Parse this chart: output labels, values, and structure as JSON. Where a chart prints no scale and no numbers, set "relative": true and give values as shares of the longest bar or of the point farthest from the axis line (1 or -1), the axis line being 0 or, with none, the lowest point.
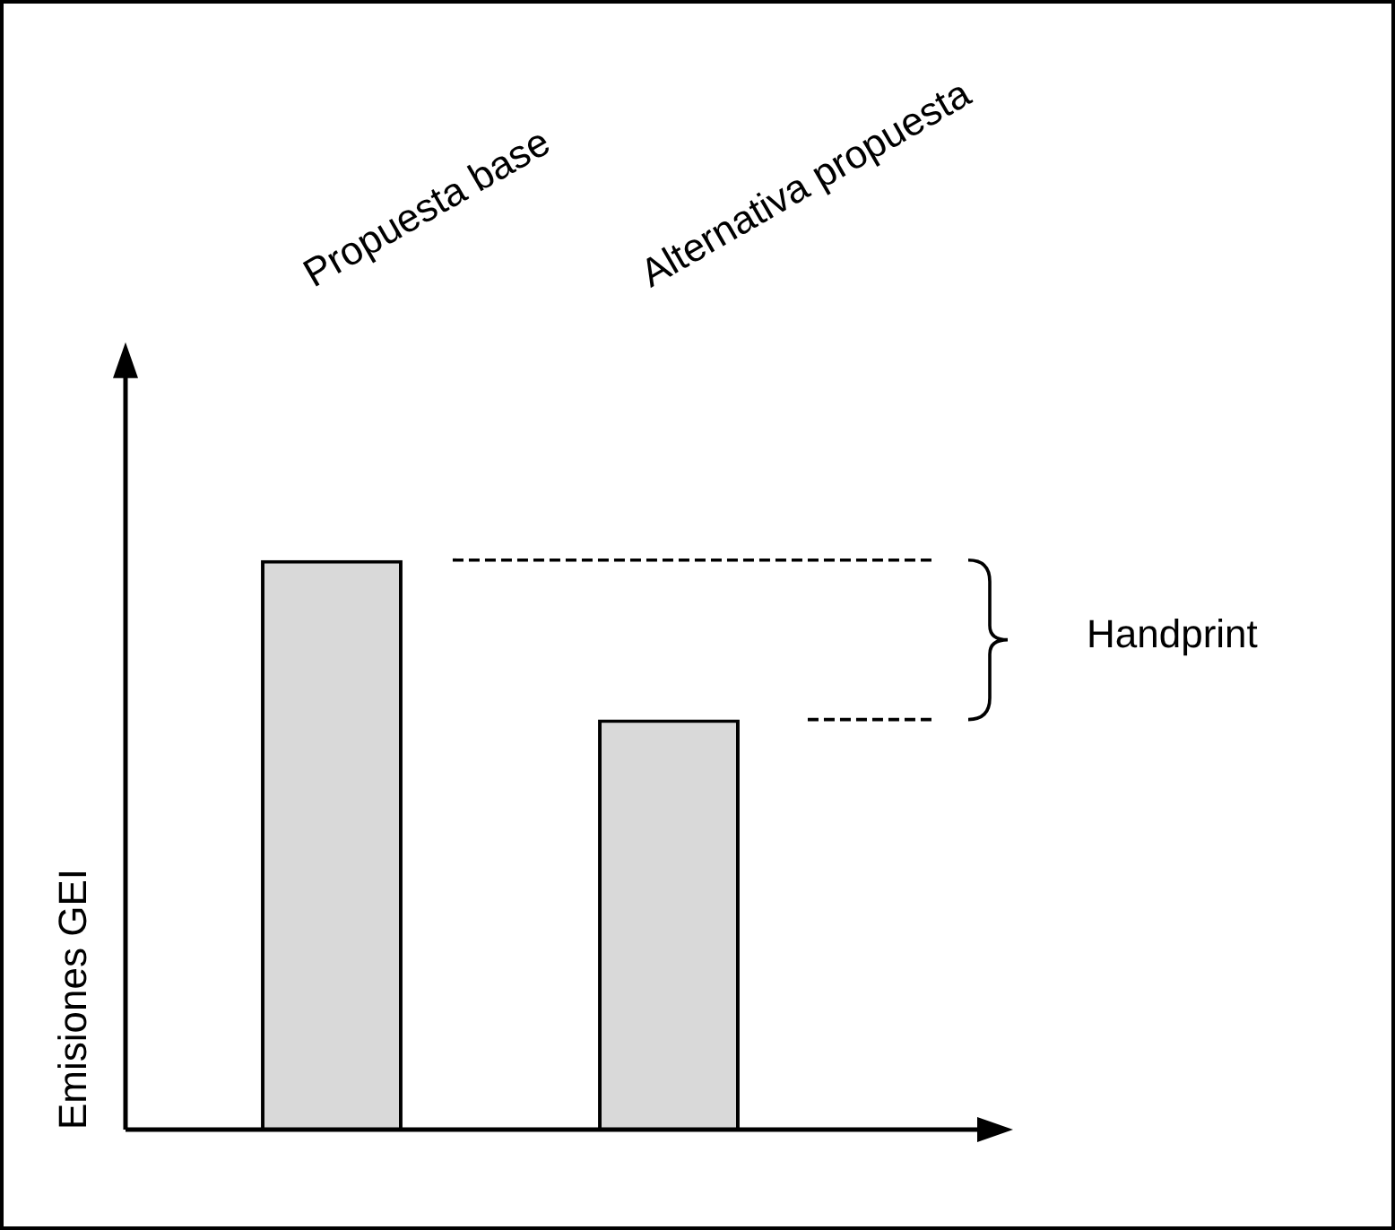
{
  "chart_data": {
    "type": "bar",
    "relative": true,
    "ylabel": "Emisiones GEI",
    "categories": [
      "Propuesta base",
      "Alternativa propuesta"
    ],
    "values": [
      1,
      0.72
    ],
    "color": "#d9d9d9",
    "grid": false,
    "legend": false,
    "annotations": [
      "Handprint"
    ]
  }
}
